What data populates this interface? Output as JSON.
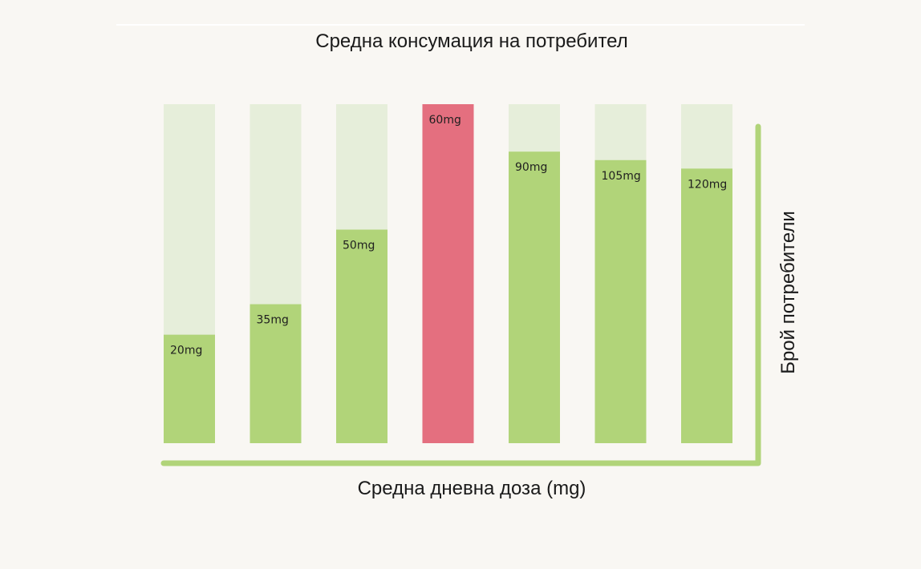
{
  "chart_data": {
    "type": "bar",
    "title": "Средна консумация на потребител",
    "xlabel": "Средна дневна доза (mg)",
    "ylabel": "Брой потребители",
    "categories": [
      "20mg",
      "35mg",
      "50mg",
      "60mg",
      "90mg",
      "105mg",
      "120mg"
    ],
    "values": [
      32,
      41,
      63,
      100,
      86,
      83.5,
      81
    ],
    "ylim": [
      0,
      100
    ],
    "grid": false,
    "colors": {
      "bar": "#b1d479",
      "bar_track": "#e6eeda",
      "highlight": "#e46f7f",
      "axis": "#b1d479"
    },
    "highlight_category": "60mg"
  }
}
